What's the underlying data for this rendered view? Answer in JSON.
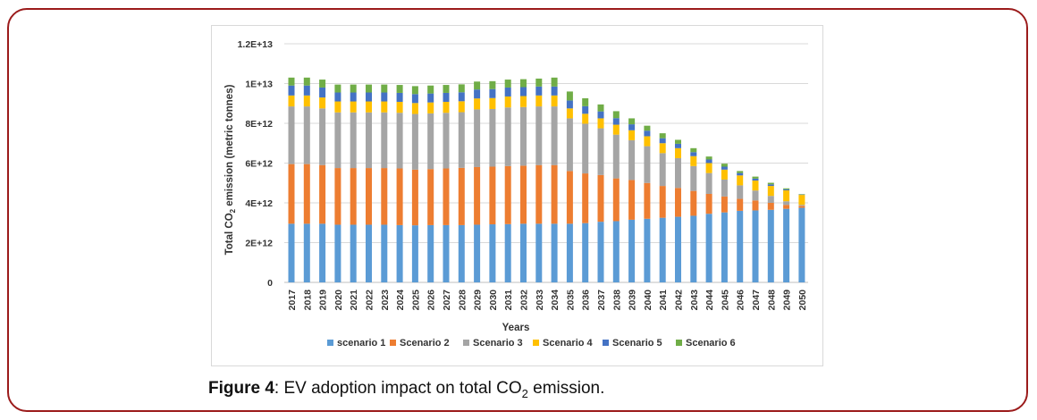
{
  "figure": {
    "label": "Figure 4",
    "text_before": ": EV adoption impact on total CO",
    "subscript": "2",
    "text_after": " emission."
  },
  "colors": {
    "frame": "#9b1b1b",
    "grid": "#d9d9d9"
  },
  "chart_data": {
    "type": "bar",
    "stacked": true,
    "xlabel": "Years",
    "ylabel_main": "Total CO",
    "ylabel_sub": "2",
    "ylabel_rest": " emission (metric tonnes)",
    "ylim": [
      0,
      12000000000000
    ],
    "yticks": [
      {
        "value": 0,
        "label": "0"
      },
      {
        "value": 2000000000000,
        "label": "2E+12"
      },
      {
        "value": 4000000000000,
        "label": "4E+12"
      },
      {
        "value": 6000000000000,
        "label": "6E+12"
      },
      {
        "value": 8000000000000,
        "label": "8E+12"
      },
      {
        "value": 10000000000000,
        "label": "1E+13"
      },
      {
        "value": 12000000000000,
        "label": "1.2E+13"
      }
    ],
    "legend_position": "bottom",
    "categories": [
      "2017",
      "2018",
      "2019",
      "2020",
      "2021",
      "2022",
      "2023",
      "2024",
      "2025",
      "2026",
      "2027",
      "2028",
      "2029",
      "2030",
      "2031",
      "2032",
      "2033",
      "2034",
      "2035",
      "2036",
      "2037",
      "2038",
      "2039",
      "2040",
      "2041",
      "2042",
      "2043",
      "2044",
      "2045",
      "2046",
      "2047",
      "2048",
      "2049",
      "2050"
    ],
    "series": [
      {
        "name": "scenario 1",
        "color": "#5b9bd5",
        "values": [
          2.95,
          2.95,
          2.95,
          2.9,
          2.9,
          2.9,
          2.9,
          2.88,
          2.87,
          2.88,
          2.88,
          2.88,
          2.9,
          2.92,
          2.93,
          2.95,
          2.95,
          2.95,
          2.95,
          2.98,
          3.05,
          3.08,
          3.15,
          3.2,
          3.25,
          3.3,
          3.35,
          3.45,
          3.52,
          3.6,
          3.62,
          3.65,
          3.7,
          3.75
        ]
      },
      {
        "name": "Scenario 2",
        "color": "#ed7d31",
        "values": [
          3.0,
          3.0,
          2.95,
          2.85,
          2.85,
          2.85,
          2.85,
          2.85,
          2.8,
          2.82,
          2.85,
          2.88,
          2.9,
          2.9,
          2.92,
          2.92,
          2.95,
          2.95,
          2.65,
          2.5,
          2.35,
          2.15,
          2.0,
          1.8,
          1.6,
          1.45,
          1.25,
          1.0,
          0.8,
          0.6,
          0.5,
          0.35,
          0.2,
          0.1
        ]
      },
      {
        "name": "Scenario 3",
        "color": "#a5a5a5",
        "values": [
          2.9,
          2.9,
          2.85,
          2.8,
          2.8,
          2.8,
          2.8,
          2.8,
          2.8,
          2.8,
          2.8,
          2.8,
          2.9,
          2.9,
          2.95,
          2.95,
          2.95,
          2.95,
          2.65,
          2.5,
          2.35,
          2.2,
          2.0,
          1.85,
          1.65,
          1.5,
          1.25,
          1.05,
          0.85,
          0.68,
          0.5,
          0.35,
          0.18,
          0.05
        ]
      },
      {
        "name": "Scenario 4",
        "color": "#ffc000",
        "values": [
          0.55,
          0.55,
          0.55,
          0.55,
          0.55,
          0.55,
          0.55,
          0.55,
          0.55,
          0.55,
          0.55,
          0.55,
          0.55,
          0.55,
          0.55,
          0.55,
          0.55,
          0.55,
          0.5,
          0.5,
          0.5,
          0.5,
          0.5,
          0.5,
          0.5,
          0.5,
          0.5,
          0.5,
          0.5,
          0.5,
          0.5,
          0.5,
          0.55,
          0.5
        ]
      },
      {
        "name": "Scenario 5",
        "color": "#4472c4",
        "values": [
          0.5,
          0.5,
          0.5,
          0.45,
          0.45,
          0.45,
          0.45,
          0.45,
          0.45,
          0.45,
          0.45,
          0.45,
          0.45,
          0.45,
          0.45,
          0.45,
          0.45,
          0.45,
          0.4,
          0.38,
          0.35,
          0.33,
          0.3,
          0.28,
          0.25,
          0.22,
          0.2,
          0.18,
          0.15,
          0.12,
          0.1,
          0.08,
          0.05,
          0.02
        ]
      },
      {
        "name": "Scenario 6",
        "color": "#70ad47",
        "values": [
          0.4,
          0.4,
          0.4,
          0.4,
          0.4,
          0.4,
          0.4,
          0.4,
          0.4,
          0.4,
          0.4,
          0.4,
          0.4,
          0.4,
          0.4,
          0.4,
          0.4,
          0.45,
          0.45,
          0.4,
          0.35,
          0.35,
          0.3,
          0.25,
          0.25,
          0.2,
          0.2,
          0.15,
          0.15,
          0.1,
          0.1,
          0.08,
          0.05,
          0.02
        ]
      }
    ],
    "value_unit": "1E+12"
  }
}
